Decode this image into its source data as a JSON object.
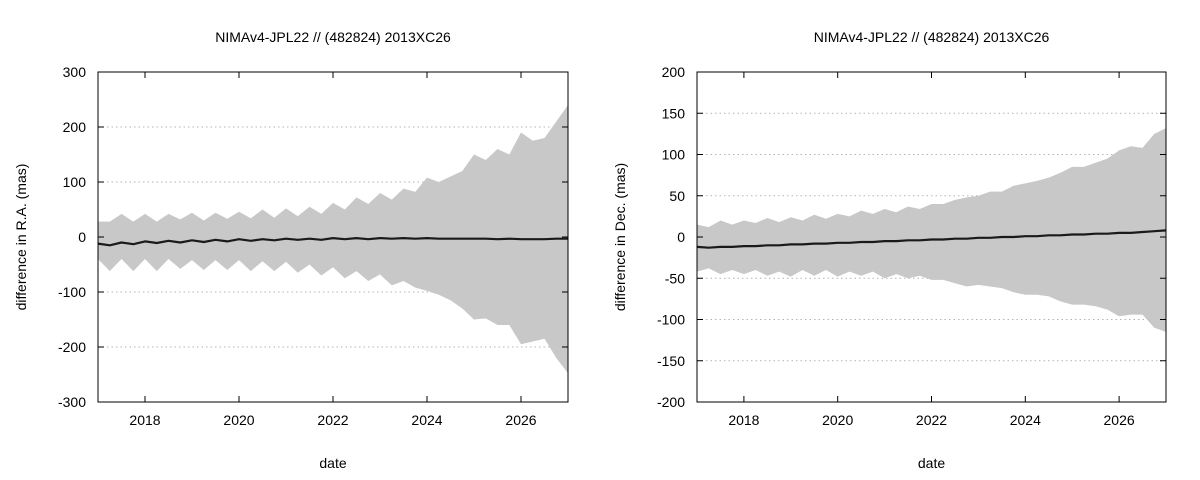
{
  "chart_data": [
    {
      "type": "area",
      "title": "NIMAv4-JPL22 // (482824) 2013XC26",
      "xlabel": "date",
      "ylabel": "difference in R.A. (mas)",
      "xlim": [
        2017.0,
        2027.0
      ],
      "ylim": [
        -300,
        300
      ],
      "x_ticks": [
        2018,
        2020,
        2022,
        2024,
        2026
      ],
      "y_ticks": [
        -300,
        -200,
        -100,
        0,
        100,
        200,
        300
      ],
      "grid": "horizontal dotted",
      "series": [
        {
          "kind": "uncertainty-band",
          "color": "#c8c8c8",
          "x": [
            2017.0,
            2017.25,
            2017.5,
            2017.75,
            2018.0,
            2018.25,
            2018.5,
            2018.75,
            2019.0,
            2019.25,
            2019.5,
            2019.75,
            2020.0,
            2020.25,
            2020.5,
            2020.75,
            2021.0,
            2021.25,
            2021.5,
            2021.75,
            2022.0,
            2022.25,
            2022.5,
            2022.75,
            2023.0,
            2023.25,
            2023.5,
            2023.75,
            2024.0,
            2024.25,
            2024.5,
            2024.75,
            2025.0,
            2025.25,
            2025.5,
            2025.75,
            2026.0,
            2026.25,
            2026.5,
            2026.75,
            2027.0
          ],
          "upper": [
            28,
            28,
            42,
            28,
            42,
            28,
            42,
            32,
            44,
            30,
            44,
            33,
            46,
            34,
            50,
            35,
            52,
            38,
            55,
            42,
            62,
            50,
            72,
            60,
            80,
            68,
            88,
            82,
            108,
            100,
            110,
            120,
            150,
            140,
            160,
            150,
            190,
            175,
            180,
            210,
            240
          ],
          "lower": [
            -40,
            -62,
            -40,
            -62,
            -40,
            -62,
            -40,
            -58,
            -42,
            -60,
            -42,
            -60,
            -42,
            -62,
            -44,
            -62,
            -45,
            -65,
            -50,
            -70,
            -55,
            -75,
            -62,
            -80,
            -68,
            -88,
            -80,
            -92,
            -98,
            -105,
            -115,
            -130,
            -150,
            -148,
            -160,
            -160,
            -195,
            -190,
            -185,
            -220,
            -248
          ]
        },
        {
          "kind": "line",
          "color": "#1a1a1a",
          "x": [
            2017.0,
            2017.25,
            2017.5,
            2017.75,
            2018.0,
            2018.25,
            2018.5,
            2018.75,
            2019.0,
            2019.25,
            2019.5,
            2019.75,
            2020.0,
            2020.25,
            2020.5,
            2020.75,
            2021.0,
            2021.25,
            2021.5,
            2021.75,
            2022.0,
            2022.25,
            2022.5,
            2022.75,
            2023.0,
            2023.25,
            2023.5,
            2023.75,
            2024.0,
            2024.25,
            2024.5,
            2024.75,
            2025.0,
            2025.25,
            2025.5,
            2025.75,
            2026.0,
            2026.25,
            2026.5,
            2026.75,
            2027.0
          ],
          "values": [
            -12,
            -15,
            -10,
            -13,
            -8,
            -11,
            -7,
            -10,
            -6,
            -9,
            -5,
            -8,
            -4,
            -7,
            -4,
            -6,
            -3,
            -5,
            -3,
            -5,
            -2,
            -4,
            -2,
            -4,
            -2,
            -3,
            -2,
            -3,
            -2,
            -3,
            -3,
            -3,
            -3,
            -3,
            -4,
            -3,
            -4,
            -4,
            -4,
            -3,
            -3
          ]
        }
      ]
    },
    {
      "type": "area",
      "title": "NIMAv4-JPL22 // (482824) 2013XC26",
      "xlabel": "date",
      "ylabel": "difference in Dec. (mas)",
      "xlim": [
        2017.0,
        2027.0
      ],
      "ylim": [
        -200,
        200
      ],
      "x_ticks": [
        2018,
        2020,
        2022,
        2024,
        2026
      ],
      "y_ticks": [
        -200,
        -150,
        -100,
        -50,
        0,
        50,
        100,
        150,
        200
      ],
      "grid": "horizontal dotted",
      "series": [
        {
          "kind": "uncertainty-band",
          "color": "#c8c8c8",
          "x": [
            2017.0,
            2017.25,
            2017.5,
            2017.75,
            2018.0,
            2018.25,
            2018.5,
            2018.75,
            2019.0,
            2019.25,
            2019.5,
            2019.75,
            2020.0,
            2020.25,
            2020.5,
            2020.75,
            2021.0,
            2021.25,
            2021.5,
            2021.75,
            2022.0,
            2022.25,
            2022.5,
            2022.75,
            2023.0,
            2023.25,
            2023.5,
            2023.75,
            2024.0,
            2024.25,
            2024.5,
            2024.75,
            2025.0,
            2025.25,
            2025.5,
            2025.75,
            2026.0,
            2026.25,
            2026.5,
            2026.75,
            2027.0
          ],
          "upper": [
            15,
            12,
            20,
            15,
            20,
            17,
            23,
            18,
            24,
            20,
            27,
            22,
            28,
            25,
            32,
            28,
            34,
            30,
            37,
            34,
            40,
            40,
            45,
            48,
            50,
            55,
            55,
            62,
            65,
            68,
            72,
            78,
            85,
            85,
            90,
            95,
            105,
            110,
            108,
            125,
            132
          ],
          "lower": [
            -42,
            -38,
            -45,
            -40,
            -45,
            -40,
            -47,
            -42,
            -48,
            -40,
            -47,
            -40,
            -48,
            -42,
            -47,
            -42,
            -50,
            -45,
            -50,
            -47,
            -52,
            -52,
            -56,
            -60,
            -58,
            -60,
            -62,
            -67,
            -70,
            -70,
            -72,
            -78,
            -82,
            -82,
            -84,
            -88,
            -96,
            -94,
            -94,
            -110,
            -115
          ]
        },
        {
          "kind": "line",
          "color": "#1a1a1a",
          "x": [
            2017.0,
            2017.25,
            2017.5,
            2017.75,
            2018.0,
            2018.25,
            2018.5,
            2018.75,
            2019.0,
            2019.25,
            2019.5,
            2019.75,
            2020.0,
            2020.25,
            2020.5,
            2020.75,
            2021.0,
            2021.25,
            2021.5,
            2021.75,
            2022.0,
            2022.25,
            2022.5,
            2022.75,
            2023.0,
            2023.25,
            2023.5,
            2023.75,
            2024.0,
            2024.25,
            2024.5,
            2024.75,
            2025.0,
            2025.25,
            2025.5,
            2025.75,
            2026.0,
            2026.25,
            2026.5,
            2026.75,
            2027.0
          ],
          "values": [
            -12,
            -13,
            -12,
            -12,
            -11,
            -11,
            -10,
            -10,
            -9,
            -9,
            -8,
            -8,
            -7,
            -7,
            -6,
            -6,
            -5,
            -5,
            -4,
            -4,
            -3,
            -3,
            -2,
            -2,
            -1,
            -1,
            0,
            0,
            1,
            1,
            2,
            2,
            3,
            3,
            4,
            4,
            5,
            5,
            6,
            7,
            8
          ]
        }
      ]
    }
  ]
}
